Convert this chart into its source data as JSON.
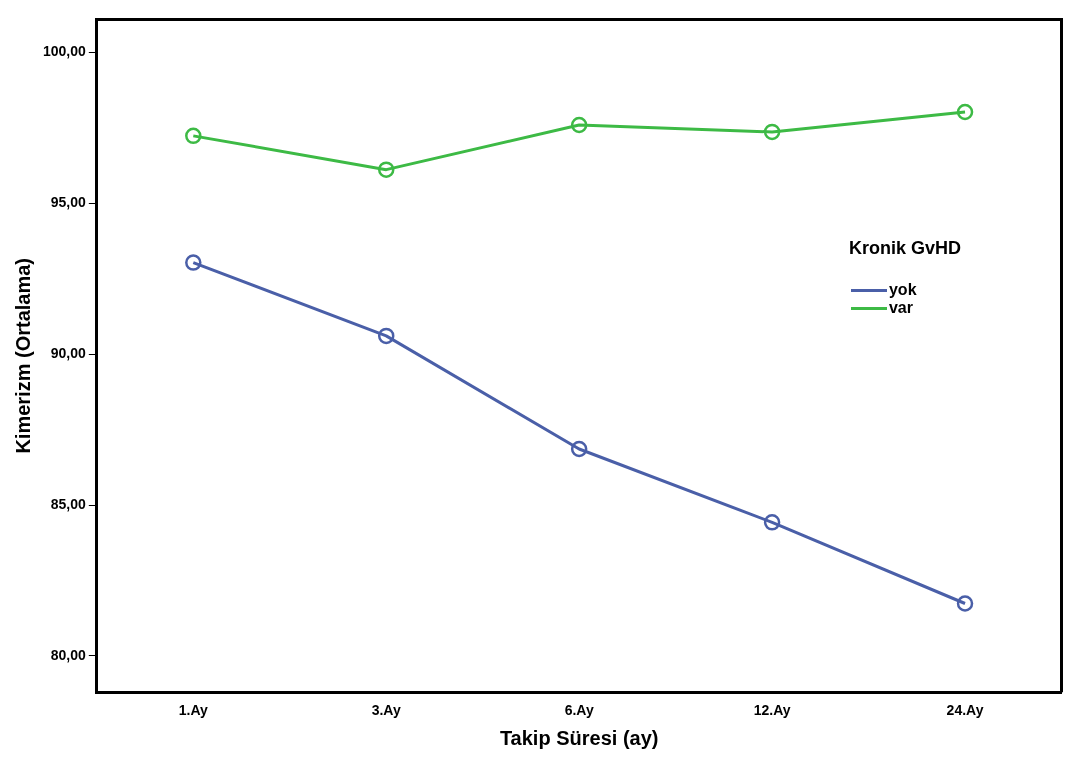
{
  "chart_data": {
    "type": "line",
    "xlabel": "Takip Süresi (ay)",
    "ylabel": "Kimerizm (Ortalama)",
    "legend_title": "Kronik GvHD",
    "categories": [
      "1.Ay",
      "3.Ay",
      "6.Ay",
      "12.Ay",
      "24.Ay"
    ],
    "series": [
      {
        "name": "yok",
        "color": "#4a5fa8",
        "values": [
          93.04,
          90.61,
          86.86,
          84.43,
          81.74
        ]
      },
      {
        "name": "var",
        "color": "#3dba45",
        "values": [
          97.24,
          96.12,
          97.6,
          97.37,
          98.03
        ]
      }
    ],
    "ylim": [
      78.8,
      101.1
    ],
    "yticks": [
      {
        "value": 80,
        "label": "80,00"
      },
      {
        "value": 85,
        "label": "85,00"
      },
      {
        "value": 90,
        "label": "90,00"
      },
      {
        "value": 95,
        "label": "95,00"
      },
      {
        "value": 100,
        "label": "100,00"
      }
    ],
    "grid": false,
    "legend": "right",
    "marker": "circle",
    "line_style": "solid"
  }
}
